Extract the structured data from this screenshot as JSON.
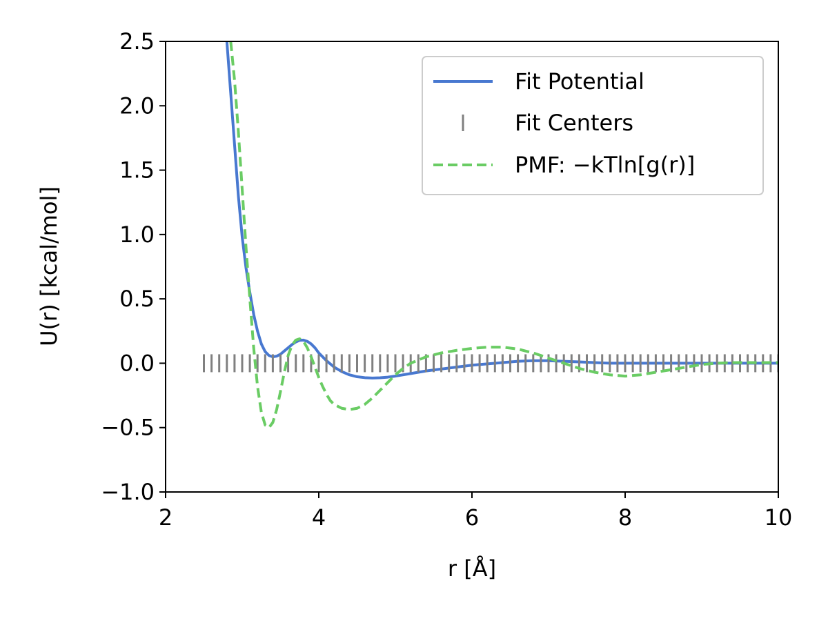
{
  "chart_data": {
    "type": "line",
    "title": "",
    "xlabel": "r [Å]",
    "ylabel": "U(r) [kcal/mol]",
    "xlim": [
      2,
      10
    ],
    "ylim": [
      -1.0,
      2.5
    ],
    "xticks": [
      2,
      4,
      6,
      8,
      10
    ],
    "xtick_labels": [
      "2",
      "4",
      "6",
      "8",
      "10"
    ],
    "yticks": [
      -1.0,
      -0.5,
      0.0,
      0.5,
      1.0,
      1.5,
      2.0,
      2.5
    ],
    "ytick_labels": [
      "−1.0",
      "−0.5",
      "0.0",
      "0.5",
      "1.0",
      "1.5",
      "2.0",
      "2.5"
    ],
    "grid": false,
    "legend_position": "top-right",
    "series": [
      {
        "name": "Fit Potential",
        "style": "solid",
        "color": "#4878d0",
        "x": [
          2.8,
          2.85,
          2.9,
          2.95,
          3.0,
          3.05,
          3.1,
          3.15,
          3.2,
          3.25,
          3.3,
          3.35,
          3.4,
          3.45,
          3.5,
          3.55,
          3.6,
          3.65,
          3.7,
          3.75,
          3.8,
          3.85,
          3.9,
          3.95,
          4.0,
          4.1,
          4.2,
          4.3,
          4.4,
          4.5,
          4.6,
          4.7,
          4.8,
          4.9,
          5.0,
          5.2,
          5.4,
          5.6,
          5.8,
          6.0,
          6.2,
          6.4,
          6.6,
          6.8,
          7.0,
          7.2,
          7.4,
          7.6,
          7.8,
          8.0,
          8.5,
          9.0,
          9.5,
          10.0
        ],
        "y": [
          2.5,
          2.1,
          1.7,
          1.3,
          0.98,
          0.74,
          0.55,
          0.38,
          0.25,
          0.15,
          0.09,
          0.06,
          0.05,
          0.055,
          0.07,
          0.095,
          0.12,
          0.145,
          0.165,
          0.178,
          0.18,
          0.17,
          0.15,
          0.12,
          0.08,
          0.02,
          -0.03,
          -0.065,
          -0.09,
          -0.105,
          -0.112,
          -0.115,
          -0.113,
          -0.108,
          -0.1,
          -0.08,
          -0.06,
          -0.045,
          -0.03,
          -0.015,
          -0.005,
          0.005,
          0.015,
          0.02,
          0.02,
          0.015,
          0.01,
          0.005,
          0.0,
          0.0,
          0.0,
          0.0,
          0.0,
          0.0
        ]
      },
      {
        "name": "Fit Centers",
        "style": "marker",
        "color": "#808080",
        "x": [
          2.5,
          2.6,
          2.7,
          2.8,
          2.9,
          3.0,
          3.1,
          3.2,
          3.3,
          3.4,
          3.5,
          3.6,
          3.7,
          3.8,
          3.9,
          4.0,
          4.1,
          4.2,
          4.3,
          4.4,
          4.5,
          4.6,
          4.7,
          4.8,
          4.9,
          5.0,
          5.1,
          5.2,
          5.3,
          5.4,
          5.5,
          5.6,
          5.7,
          5.8,
          5.9,
          6.0,
          6.1,
          6.2,
          6.3,
          6.4,
          6.5,
          6.6,
          6.7,
          6.8,
          6.9,
          7.0,
          7.1,
          7.2,
          7.3,
          7.4,
          7.5,
          7.6,
          7.7,
          7.8,
          7.9,
          8.0,
          8.1,
          8.2,
          8.3,
          8.4,
          8.5,
          8.6,
          8.7,
          8.8,
          8.9,
          9.0,
          9.1,
          9.2,
          9.3,
          9.4,
          9.5,
          9.6,
          9.7,
          9.8,
          9.9,
          10.0
        ],
        "y": [
          0.0,
          0.0,
          0.0,
          0.0,
          0.0,
          0.0,
          0.0,
          0.0,
          0.0,
          0.0,
          0.0,
          0.0,
          0.0,
          0.0,
          0.0,
          0.0,
          0.0,
          0.0,
          0.0,
          0.0,
          0.0,
          0.0,
          0.0,
          0.0,
          0.0,
          0.0,
          0.0,
          0.0,
          0.0,
          0.0,
          0.0,
          0.0,
          0.0,
          0.0,
          0.0,
          0.0,
          0.0,
          0.0,
          0.0,
          0.0,
          0.0,
          0.0,
          0.0,
          0.0,
          0.0,
          0.0,
          0.0,
          0.0,
          0.0,
          0.0,
          0.0,
          0.0,
          0.0,
          0.0,
          0.0,
          0.0,
          0.0,
          0.0,
          0.0,
          0.0,
          0.0,
          0.0,
          0.0,
          0.0,
          0.0,
          0.0,
          0.0,
          0.0,
          0.0,
          0.0,
          0.0,
          0.0,
          0.0,
          0.0,
          0.0,
          0.0
        ]
      },
      {
        "name": "PMF: −kTln[g(r)]",
        "style": "dashed",
        "color": "#6acc64",
        "x": [
          2.85,
          2.9,
          2.95,
          3.0,
          3.05,
          3.1,
          3.15,
          3.2,
          3.25,
          3.3,
          3.35,
          3.4,
          3.45,
          3.5,
          3.55,
          3.6,
          3.65,
          3.7,
          3.75,
          3.8,
          3.85,
          3.9,
          3.95,
          4.0,
          4.05,
          4.1,
          4.15,
          4.2,
          4.3,
          4.4,
          4.5,
          4.6,
          4.7,
          4.8,
          4.9,
          5.0,
          5.1,
          5.2,
          5.4,
          5.6,
          5.8,
          6.0,
          6.2,
          6.4,
          6.6,
          6.8,
          7.0,
          7.2,
          7.4,
          7.6,
          7.8,
          8.0,
          8.2,
          8.4,
          8.6,
          8.8,
          9.0,
          9.2,
          9.4,
          9.6,
          9.8,
          10.0
        ],
        "y": [
          2.5,
          2.2,
          1.8,
          1.35,
          0.9,
          0.5,
          0.12,
          -0.18,
          -0.38,
          -0.48,
          -0.5,
          -0.46,
          -0.36,
          -0.22,
          -0.07,
          0.06,
          0.14,
          0.18,
          0.19,
          0.17,
          0.12,
          0.05,
          -0.03,
          -0.11,
          -0.18,
          -0.24,
          -0.29,
          -0.32,
          -0.35,
          -0.36,
          -0.35,
          -0.32,
          -0.27,
          -0.21,
          -0.15,
          -0.09,
          -0.04,
          0.0,
          0.05,
          0.08,
          0.1,
          0.115,
          0.125,
          0.125,
          0.11,
          0.08,
          0.04,
          0.0,
          -0.04,
          -0.07,
          -0.09,
          -0.1,
          -0.09,
          -0.07,
          -0.05,
          -0.03,
          -0.01,
          0.0,
          0.005,
          0.005,
          0.005,
          0.005
        ]
      }
    ]
  }
}
